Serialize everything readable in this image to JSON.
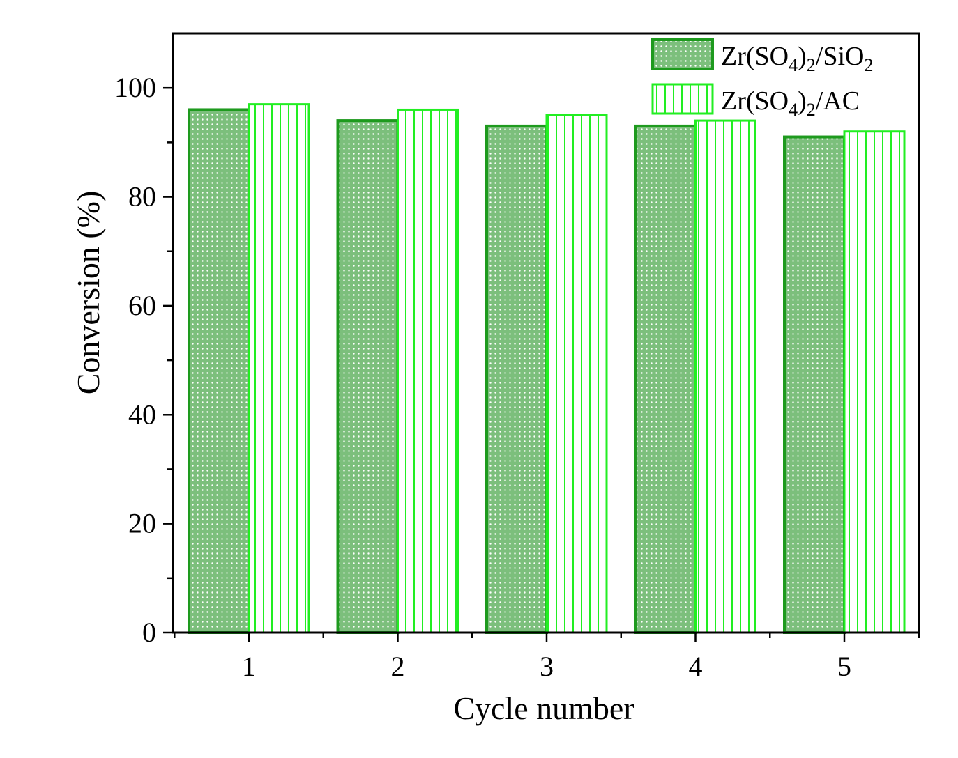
{
  "chart_data": {
    "type": "bar",
    "title": "",
    "xlabel": "Cycle number",
    "ylabel": "Conversion (%)",
    "categories": [
      "1",
      "2",
      "3",
      "4",
      "5"
    ],
    "ylim": [
      0,
      110
    ],
    "yticks": [
      0,
      20,
      40,
      60,
      80,
      100
    ],
    "grid": false,
    "legend_position": "top-right",
    "series": [
      {
        "name": "Zr(SO4)2/SiO2",
        "label_parts": {
          "a": "Zr(SO",
          "b": "4",
          "c": ")",
          "d": "2",
          "e": "/SiO",
          "f": "2"
        },
        "values": [
          96,
          94,
          93,
          93,
          91
        ],
        "fill": "#7cbf7c",
        "stroke": "#1e9a1e",
        "pattern": "dots"
      },
      {
        "name": "Zr(SO4)2/AC",
        "label_parts": {
          "a": "Zr(SO",
          "b": "4",
          "c": ")",
          "d": "2",
          "e": "/AC",
          "f": ""
        },
        "values": [
          97,
          96,
          95,
          94,
          92
        ],
        "fill": "#ffffff",
        "stroke": "#22ee22",
        "pattern": "vertical-lines"
      }
    ]
  }
}
